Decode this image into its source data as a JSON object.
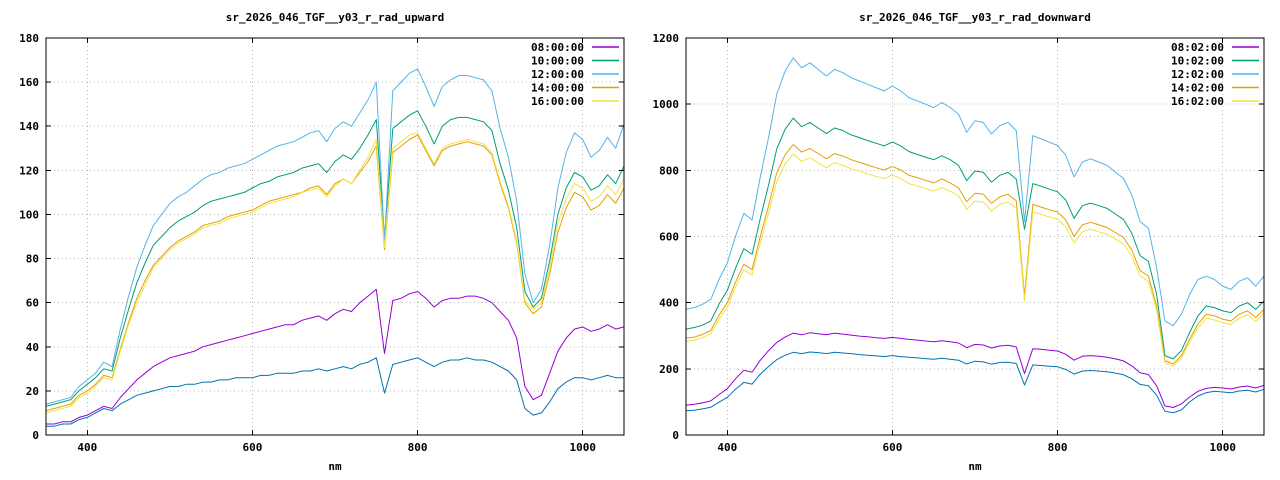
{
  "page": {
    "background": "#ffffff",
    "grid_color": "#b8b8b8",
    "border_color": "#000000"
  },
  "chart_data": [
    {
      "type": "line",
      "title": "sr_2026_046_TGF__y03_r_rad_upward",
      "xlabel": "nm",
      "ylabel": "",
      "xlim": [
        350,
        1050
      ],
      "ylim": [
        0,
        180
      ],
      "xticks": [
        400,
        600,
        800,
        1000
      ],
      "ytick_step": 20,
      "grid": true,
      "legend_position": "top-right",
      "x": [
        350,
        360,
        370,
        380,
        390,
        400,
        410,
        420,
        430,
        440,
        450,
        460,
        470,
        480,
        490,
        500,
        510,
        520,
        530,
        540,
        550,
        560,
        570,
        580,
        590,
        600,
        610,
        620,
        630,
        640,
        650,
        660,
        670,
        680,
        690,
        700,
        710,
        720,
        730,
        740,
        750,
        760,
        770,
        780,
        790,
        800,
        810,
        820,
        830,
        840,
        850,
        860,
        870,
        880,
        890,
        900,
        910,
        920,
        930,
        940,
        950,
        960,
        970,
        980,
        990,
        1000,
        1010,
        1020,
        1030,
        1040,
        1050
      ],
      "series": [
        {
          "name": "08:00:00",
          "color": "#9400d3",
          "in_legend": true,
          "y": [
            5,
            5,
            6,
            6,
            8,
            9,
            11,
            13,
            12,
            17,
            21,
            25,
            28,
            31,
            33,
            35,
            36,
            37,
            38,
            40,
            41,
            42,
            43,
            44,
            45,
            46,
            47,
            48,
            49,
            50,
            50,
            52,
            53,
            54,
            52,
            55,
            57,
            56,
            60,
            63,
            66,
            37,
            61,
            62,
            64,
            65,
            62,
            58,
            61,
            62,
            62,
            63,
            63,
            62,
            60,
            56,
            52,
            44,
            22,
            16,
            18,
            28,
            38,
            44,
            48,
            49,
            47,
            48,
            50,
            48,
            49
          ]
        },
        {
          "name": "10:00:00",
          "color": "#009e73",
          "in_legend": true,
          "y": [
            13,
            14,
            15,
            16,
            20,
            23,
            26,
            30,
            29,
            44,
            57,
            69,
            78,
            86,
            90,
            94,
            97,
            99,
            101,
            104,
            106,
            107,
            108,
            109,
            110,
            112,
            114,
            115,
            117,
            118,
            119,
            121,
            122,
            123,
            119,
            124,
            127,
            125,
            130,
            136,
            143,
            89,
            139,
            142,
            145,
            147,
            140,
            132,
            140,
            143,
            144,
            144,
            143,
            142,
            138,
            123,
            111,
            94,
            65,
            58,
            62,
            79,
            100,
            112,
            119,
            117,
            111,
            113,
            118,
            114,
            122
          ]
        },
        {
          "name": "12:00:00",
          "color": "#56b4e9",
          "in_legend": true,
          "y": [
            14,
            15,
            16,
            17,
            22,
            25,
            28,
            33,
            31,
            48,
            63,
            76,
            86,
            95,
            100,
            105,
            108,
            110,
            113,
            116,
            118,
            119,
            121,
            122,
            123,
            125,
            127,
            129,
            131,
            132,
            133,
            135,
            137,
            138,
            133,
            139,
            142,
            140,
            146,
            152,
            160,
            88,
            156,
            160,
            164,
            166,
            158,
            149,
            158,
            161,
            163,
            163,
            162,
            161,
            156,
            139,
            126,
            106,
            73,
            60,
            66,
            86,
            112,
            128,
            137,
            134,
            126,
            129,
            135,
            130,
            141
          ]
        },
        {
          "name": "14:00:00",
          "color": "#e69f00",
          "in_legend": true,
          "y": [
            11,
            12,
            13,
            14,
            18,
            20,
            23,
            27,
            26,
            39,
            51,
            62,
            70,
            77,
            81,
            85,
            88,
            90,
            92,
            95,
            96,
            97,
            99,
            100,
            101,
            102,
            104,
            106,
            107,
            108,
            109,
            110,
            112,
            113,
            109,
            114,
            116,
            114,
            119,
            124,
            131,
            84,
            128,
            131,
            134,
            136,
            129,
            122,
            129,
            131,
            132,
            133,
            132,
            131,
            127,
            114,
            103,
            87,
            60,
            55,
            58,
            73,
            92,
            103,
            110,
            108,
            102,
            104,
            109,
            105,
            112
          ]
        },
        {
          "name": "16:00:00",
          "color": "#f0e442",
          "in_legend": true,
          "y": [
            10,
            11,
            12,
            13,
            17,
            19,
            22,
            26,
            25,
            38,
            50,
            60,
            68,
            76,
            80,
            84,
            87,
            89,
            91,
            94,
            95,
            96,
            98,
            99,
            100,
            101,
            103,
            105,
            106,
            107,
            108,
            110,
            111,
            112,
            108,
            113,
            116,
            114,
            120,
            126,
            134,
            85,
            130,
            133,
            136,
            137,
            130,
            123,
            130,
            132,
            133,
            134,
            133,
            132,
            128,
            115,
            104,
            88,
            61,
            57,
            60,
            76,
            96,
            107,
            114,
            112,
            106,
            108,
            113,
            109,
            116
          ]
        },
        {
          "name": "",
          "color": "#0072b2",
          "in_legend": false,
          "y": [
            4,
            4,
            5,
            5,
            7,
            8,
            10,
            12,
            11,
            14,
            16,
            18,
            19,
            20,
            21,
            22,
            22,
            23,
            23,
            24,
            24,
            25,
            25,
            26,
            26,
            26,
            27,
            27,
            28,
            28,
            28,
            29,
            29,
            30,
            29,
            30,
            31,
            30,
            32,
            33,
            35,
            19,
            32,
            33,
            34,
            35,
            33,
            31,
            33,
            34,
            34,
            35,
            34,
            34,
            33,
            31,
            29,
            25,
            12,
            9,
            10,
            15,
            21,
            24,
            26,
            26,
            25,
            26,
            27,
            26,
            26
          ]
        }
      ]
    },
    {
      "type": "line",
      "title": "sr_2026_046_TGF__y03_r_rad_downward",
      "xlabel": "nm",
      "ylabel": "",
      "xlim": [
        350,
        1050
      ],
      "ylim": [
        0,
        1200
      ],
      "xticks": [
        400,
        600,
        800,
        1000
      ],
      "ytick_step": 200,
      "grid": true,
      "legend_position": "top-right",
      "x": [
        350,
        360,
        370,
        380,
        390,
        400,
        410,
        420,
        430,
        440,
        450,
        460,
        470,
        480,
        490,
        500,
        510,
        520,
        530,
        540,
        550,
        560,
        570,
        580,
        590,
        600,
        610,
        620,
        630,
        640,
        650,
        660,
        670,
        680,
        690,
        700,
        710,
        720,
        730,
        740,
        750,
        760,
        770,
        780,
        790,
        800,
        810,
        820,
        830,
        840,
        850,
        860,
        870,
        880,
        890,
        900,
        910,
        920,
        930,
        940,
        950,
        960,
        970,
        980,
        990,
        1000,
        1010,
        1020,
        1030,
        1040,
        1050
      ],
      "series": [
        {
          "name": "08:02:00",
          "color": "#9400d3",
          "in_legend": true,
          "y": [
            90,
            93,
            97,
            103,
            122,
            140,
            170,
            196,
            190,
            226,
            255,
            280,
            296,
            308,
            303,
            309,
            306,
            303,
            308,
            305,
            302,
            299,
            297,
            294,
            292,
            295,
            292,
            289,
            287,
            284,
            282,
            285,
            282,
            278,
            264,
            274,
            272,
            263,
            269,
            271,
            266,
            186,
            261,
            259,
            256,
            254,
            244,
            226,
            238,
            240,
            238,
            235,
            230,
            224,
            209,
            188,
            183,
            148,
            88,
            83,
            94,
            115,
            132,
            141,
            144,
            142,
            139,
            145,
            148,
            142,
            150
          ]
        },
        {
          "name": "10:02:00",
          "color": "#009e73",
          "in_legend": true,
          "y": [
            320,
            325,
            332,
            345,
            395,
            437,
            504,
            563,
            546,
            655,
            756,
            865,
            924,
            958,
            932,
            945,
            928,
            911,
            928,
            920,
            907,
            899,
            890,
            882,
            874,
            886,
            874,
            857,
            848,
            840,
            832,
            844,
            832,
            815,
            769,
            798,
            794,
            764,
            785,
            794,
            773,
            622,
            760,
            752,
            743,
            735,
            710,
            655,
            693,
            701,
            693,
            685,
            668,
            651,
            609,
            542,
            525,
            424,
            240,
            230,
            255,
            310,
            360,
            390,
            385,
            375,
            370,
            390,
            400,
            380,
            405
          ]
        },
        {
          "name": "12:02:00",
          "color": "#56b4e9",
          "in_legend": true,
          "y": [
            380,
            385,
            395,
            410,
            470,
            520,
            600,
            670,
            650,
            780,
            900,
            1030,
            1100,
            1140,
            1110,
            1125,
            1105,
            1085,
            1105,
            1095,
            1080,
            1070,
            1060,
            1050,
            1040,
            1055,
            1040,
            1020,
            1010,
            1000,
            990,
            1005,
            990,
            970,
            915,
            950,
            945,
            910,
            935,
            945,
            920,
            645,
            905,
            895,
            885,
            875,
            845,
            780,
            825,
            835,
            825,
            815,
            795,
            775,
            725,
            645,
            625,
            505,
            345,
            330,
            365,
            425,
            470,
            480,
            470,
            450,
            440,
            465,
            475,
            450,
            480
          ]
        },
        {
          "name": "14:02:00",
          "color": "#e69f00",
          "in_legend": true,
          "y": [
            293,
            296,
            304,
            316,
            362,
            400,
            462,
            516,
            500,
            600,
            693,
            793,
            847,
            878,
            855,
            866,
            851,
            835,
            851,
            843,
            832,
            824,
            816,
            808,
            801,
            812,
            801,
            785,
            778,
            770,
            762,
            774,
            762,
            747,
            705,
            731,
            728,
            700,
            720,
            728,
            708,
            420,
            697,
            689,
            681,
            674,
            650,
            600,
            635,
            643,
            635,
            627,
            612,
            597,
            558,
            497,
            481,
            389,
            225,
            215,
            240,
            290,
            335,
            365,
            360,
            350,
            345,
            365,
            375,
            355,
            380
          ]
        },
        {
          "name": "16:02:00",
          "color": "#f0e442",
          "in_legend": true,
          "y": [
            283,
            287,
            294,
            306,
            350,
            387,
            447,
            499,
            484,
            581,
            671,
            767,
            819,
            849,
            827,
            838,
            823,
            808,
            823,
            815,
            805,
            797,
            789,
            782,
            775,
            786,
            775,
            760,
            752,
            745,
            737,
            748,
            737,
            723,
            682,
            707,
            704,
            677,
            697,
            704,
            685,
            405,
            674,
            667,
            659,
            652,
            629,
            580,
            614,
            622,
            614,
            607,
            592,
            577,
            540,
            481,
            465,
            376,
            218,
            208,
            232,
            280,
            324,
            353,
            348,
            339,
            334,
            353,
            363,
            343,
            368
          ]
        },
        {
          "name": "",
          "color": "#0072b2",
          "in_legend": false,
          "y": [
            73,
            75,
            79,
            84,
            99,
            114,
            138,
            159,
            154,
            184,
            207,
            228,
            241,
            250,
            246,
            251,
            249,
            246,
            250,
            248,
            246,
            243,
            241,
            239,
            237,
            240,
            237,
            235,
            233,
            231,
            229,
            232,
            229,
            226,
            215,
            223,
            221,
            214,
            219,
            220,
            216,
            151,
            212,
            210,
            208,
            206,
            198,
            184,
            193,
            195,
            193,
            191,
            187,
            182,
            170,
            153,
            149,
            120,
            72,
            67,
            76,
            100,
            118,
            128,
            132,
            130,
            128,
            133,
            135,
            130,
            138
          ]
        }
      ]
    }
  ]
}
